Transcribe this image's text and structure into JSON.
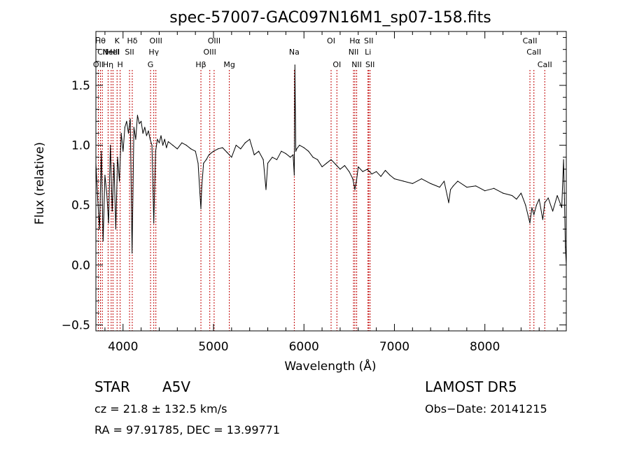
{
  "chart_data": {
    "type": "line",
    "title": "spec-57007-GAC097N16M1_sp07-158.fits",
    "xlabel": "Wavelength (Å)",
    "ylabel": "Flux (relative)",
    "xlim": [
      3700,
      8900
    ],
    "ylim": [
      -0.55,
      1.95
    ],
    "x_ticks": [
      4000,
      5000,
      6000,
      7000,
      8000
    ],
    "y_ticks": [
      -0.5,
      0.0,
      0.5,
      1.0,
      1.5
    ],
    "x_tick_labels": [
      "4000",
      "5000",
      "6000",
      "7000",
      "8000"
    ],
    "y_tick_labels": [
      "−0.5",
      "0.0",
      "0.5",
      "1.0",
      "1.5"
    ],
    "line_color": "#000000",
    "marker_color": "#c00000",
    "series": [
      {
        "x": [
          3700,
          3720,
          3740,
          3760,
          3780,
          3800,
          3820,
          3840,
          3860,
          3880,
          3900,
          3920,
          3940,
          3960,
          3980,
          4000,
          4020,
          4040,
          4060,
          4080,
          4100,
          4120,
          4140,
          4160,
          4180,
          4200,
          4220,
          4240,
          4260,
          4280,
          4300,
          4320,
          4340,
          4360,
          4380,
          4400,
          4420,
          4440,
          4460,
          4480,
          4500,
          4550,
          4600,
          4650,
          4700,
          4750,
          4800,
          4830,
          4850,
          4861,
          4870,
          4890,
          4920,
          4950,
          5000,
          5050,
          5100,
          5150,
          5200,
          5250,
          5300,
          5350,
          5400,
          5450,
          5500,
          5550,
          5580,
          5600,
          5650,
          5700,
          5750,
          5800,
          5850,
          5880,
          5893,
          5900,
          5910,
          5920,
          5950,
          6000,
          6050,
          6100,
          6150,
          6200,
          6250,
          6300,
          6350,
          6400,
          6450,
          6500,
          6540,
          6563,
          6580,
          6600,
          6650,
          6700,
          6750,
          6800,
          6850,
          6900,
          6950,
          7000,
          7100,
          7200,
          7300,
          7400,
          7500,
          7550,
          7600,
          7620,
          7650,
          7700,
          7800,
          7900,
          8000,
          8100,
          8200,
          8300,
          8350,
          8400,
          8450,
          8498,
          8520,
          8542,
          8570,
          8600,
          8640,
          8662,
          8700,
          8750,
          8800,
          8850,
          8870,
          8880,
          8890,
          8900
        ],
        "y": [
          0.85,
          0.55,
          0.3,
          0.95,
          0.2,
          0.75,
          0.6,
          0.35,
          1.0,
          0.45,
          0.85,
          0.3,
          0.9,
          0.7,
          1.1,
          0.95,
          1.15,
          1.2,
          1.1,
          1.22,
          0.1,
          1.15,
          1.05,
          1.25,
          1.18,
          1.2,
          1.1,
          1.15,
          1.08,
          1.12,
          1.05,
          1.0,
          0.35,
          0.95,
          1.05,
          1.02,
          1.08,
          1.0,
          1.05,
          0.98,
          1.03,
          1.0,
          0.97,
          1.02,
          1.0,
          0.97,
          0.95,
          0.85,
          0.6,
          0.47,
          0.65,
          0.85,
          0.88,
          0.92,
          0.95,
          0.97,
          0.98,
          0.94,
          0.9,
          1.0,
          0.97,
          1.02,
          1.05,
          0.92,
          0.95,
          0.88,
          0.63,
          0.85,
          0.9,
          0.88,
          0.95,
          0.93,
          0.9,
          0.92,
          0.75,
          1.67,
          0.95,
          0.97,
          1.0,
          0.98,
          0.95,
          0.9,
          0.88,
          0.82,
          0.85,
          0.88,
          0.84,
          0.8,
          0.83,
          0.78,
          0.72,
          0.63,
          0.7,
          0.82,
          0.78,
          0.8,
          0.76,
          0.78,
          0.74,
          0.79,
          0.75,
          0.72,
          0.7,
          0.68,
          0.72,
          0.68,
          0.65,
          0.7,
          0.52,
          0.63,
          0.66,
          0.7,
          0.65,
          0.66,
          0.62,
          0.64,
          0.6,
          0.58,
          0.55,
          0.6,
          0.5,
          0.35,
          0.48,
          0.42,
          0.5,
          0.55,
          0.38,
          0.52,
          0.56,
          0.45,
          0.58,
          0.48,
          0.88,
          0.55,
          0.15,
          0.0
        ]
      }
    ],
    "line_markers": [
      {
        "wl": 3727,
        "label": "OII",
        "row": 3
      },
      {
        "wl": 3750,
        "label": "Hθ",
        "row": 1
      },
      {
        "wl": 3771,
        "label": "CII",
        "row": 2
      },
      {
        "wl": 3835,
        "label": "Hη",
        "row": 3
      },
      {
        "wl": 3869,
        "label": "NeIII",
        "row": 2
      },
      {
        "wl": 3889,
        "label": "HeI",
        "row": 2
      },
      {
        "wl": 3934,
        "label": "K",
        "row": 1
      },
      {
        "wl": 3968,
        "label": "H",
        "row": 3
      },
      {
        "wl": 4072,
        "label": "SII",
        "row": 2
      },
      {
        "wl": 4102,
        "label": "Hδ",
        "row": 1
      },
      {
        "wl": 4304,
        "label": "G",
        "row": 3
      },
      {
        "wl": 4340,
        "label": "Hγ",
        "row": 2
      },
      {
        "wl": 4363,
        "label": "OIII",
        "row": 1
      },
      {
        "wl": 4861,
        "label": "Hβ",
        "row": 3
      },
      {
        "wl": 4959,
        "label": "OIII",
        "row": 2
      },
      {
        "wl": 5007,
        "label": "OIII",
        "row": 1
      },
      {
        "wl": 5175,
        "label": "Mg",
        "row": 3
      },
      {
        "wl": 5893,
        "label": "Na",
        "row": 2
      },
      {
        "wl": 6300,
        "label": "OI",
        "row": 1
      },
      {
        "wl": 6364,
        "label": "OI",
        "row": 3
      },
      {
        "wl": 6548,
        "label": "NII",
        "row": 2
      },
      {
        "wl": 6563,
        "label": "Hα",
        "row": 1
      },
      {
        "wl": 6583,
        "label": "NII",
        "row": 3
      },
      {
        "wl": 6708,
        "label": "Li",
        "row": 2
      },
      {
        "wl": 6716,
        "label": "SII",
        "row": 1
      },
      {
        "wl": 6731,
        "label": "SII",
        "row": 3
      },
      {
        "wl": 8498,
        "label": "CaII",
        "row": 1
      },
      {
        "wl": 8542,
        "label": "CaII",
        "row": 2
      },
      {
        "wl": 8662,
        "label": "CaII",
        "row": 3
      }
    ]
  },
  "info": {
    "object_type": "STAR",
    "subclass": "A5V",
    "survey": "LAMOST DR5",
    "redshift_line": "cz = 21.8 ± 132.5 km/s",
    "obs_date_line": "Obs−Date: 20141215",
    "coords_line": "RA =  97.91785, DEC =  13.99771"
  }
}
